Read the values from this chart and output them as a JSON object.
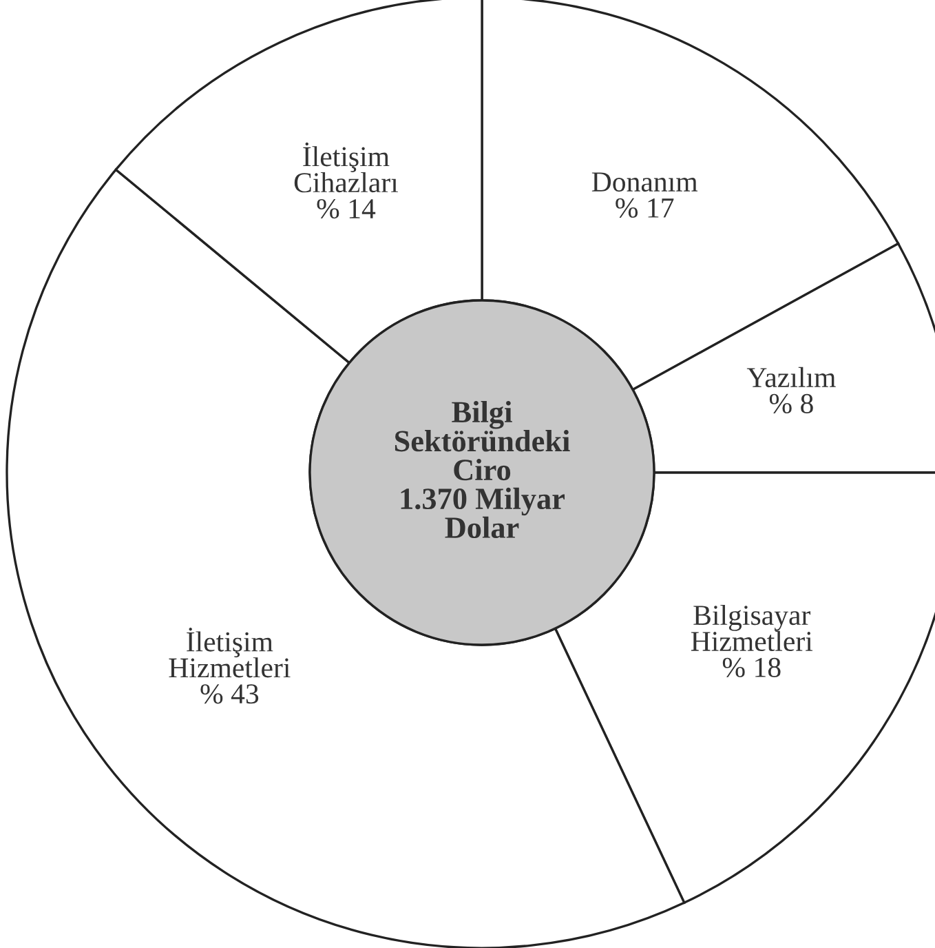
{
  "chart_data": {
    "type": "donut",
    "title": "Bilgi\nSektöründeki\nCiro\n1.370 Milyar\nDolar",
    "categories": [
      "Donanım",
      "Yazılım",
      "Bilgisayar Hizmetleri",
      "İletişim Hizmetleri",
      "İletişim Cihazları"
    ],
    "values": [
      17,
      8,
      18,
      43,
      14
    ],
    "value_labels": [
      "% 17",
      "% 8",
      "% 18",
      "% 43",
      "% 14"
    ],
    "colors": [
      "#ffffff",
      "#ffffff",
      "#ffffff",
      "#ffffff",
      "#ffffff"
    ],
    "legend": false
  }
}
